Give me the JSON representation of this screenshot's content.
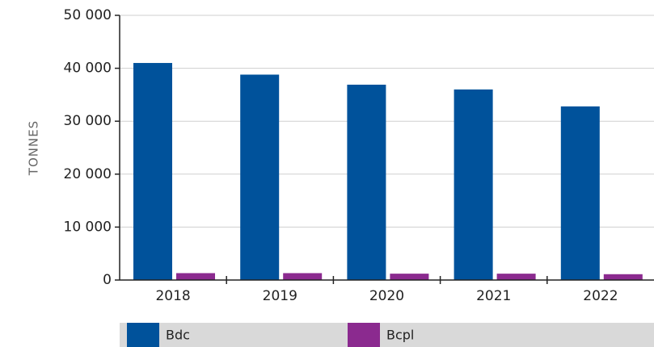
{
  "chart_data": {
    "type": "bar",
    "y_label": "TONNES",
    "categories": [
      "2018",
      "2019",
      "2020",
      "2021",
      "2022"
    ],
    "series": [
      {
        "name": "Bdc",
        "color": "#00529b",
        "values": [
          41000,
          38800,
          36900,
          36000,
          32800
        ]
      },
      {
        "name": "Bcpl",
        "color": "#8b2a8f",
        "values": [
          1300,
          1300,
          1200,
          1200,
          1100
        ]
      }
    ],
    "ylim": [
      0,
      50000
    ],
    "yticks": [
      0,
      {
        "value": 10000,
        "label": "10 000"
      },
      {
        "value": 20000,
        "label": "20 000"
      },
      {
        "value": 30000,
        "label": "30 000"
      },
      {
        "value": 40000,
        "label": "40 000"
      },
      {
        "value": 50000,
        "label": "50 000"
      }
    ],
    "grid": true,
    "legend": "bottom"
  }
}
